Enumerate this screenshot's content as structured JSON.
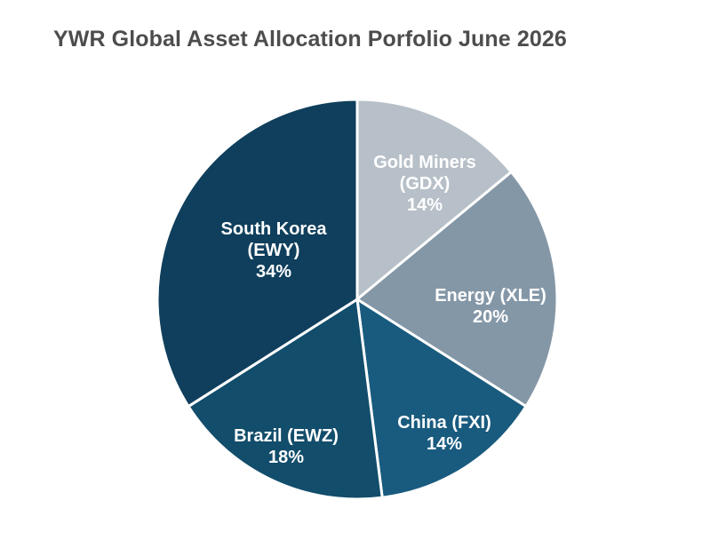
{
  "chart_data": {
    "type": "pie",
    "title": "YWR Global Asset Allocation Porfolio June 2026",
    "slices": [
      {
        "label_lines": [
          "Gold Miners",
          "(GDX)",
          "14%"
        ],
        "value": 14,
        "color": "#b7c0c8"
      },
      {
        "label_lines": [
          "Energy (XLE)",
          "20%"
        ],
        "value": 20,
        "color": "#8497a7"
      },
      {
        "label_lines": [
          "China (FXI)",
          "14%"
        ],
        "value": 14,
        "color": "#195b7e"
      },
      {
        "label_lines": [
          "Brazil (EWZ)",
          "18%"
        ],
        "value": 18,
        "color": "#124d6b"
      },
      {
        "label_lines": [
          "South Korea",
          "(EWY)",
          "34%"
        ],
        "value": 34,
        "color": "#0f3f5c"
      }
    ]
  }
}
